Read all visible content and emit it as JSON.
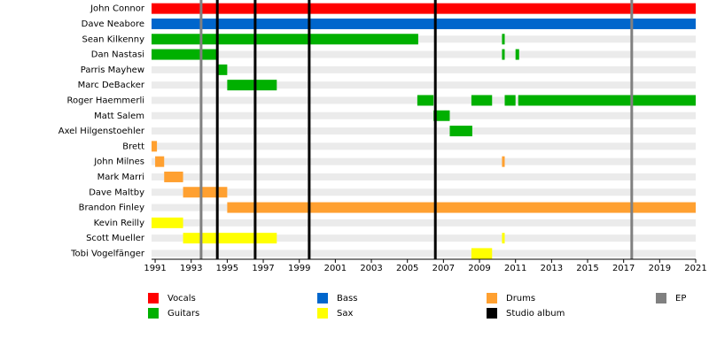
{
  "chart_data": {
    "type": "timeline",
    "categories": [
      "John Connor",
      "Dave Neabore",
      "Sean Kilkenny",
      "Dan Nastasi",
      "Parris Mayhew",
      "Marc DeBacker",
      "Roger Haemmerli",
      "Matt Salem",
      "Axel Hilgenstoehler",
      "Brett",
      "John Milnes",
      "Mark Marri",
      "Dave Maltby",
      "Brandon Finley",
      "Kevin Reilly",
      "Scott Mueller",
      "Tobi Vogelfänger"
    ],
    "series": [
      {
        "name": "Vocals",
        "color": "#ff0000"
      },
      {
        "name": "Guitars",
        "color": "#00b000"
      },
      {
        "name": "Bass",
        "color": "#0066cc"
      },
      {
        "name": "Sax",
        "color": "#ffff00"
      },
      {
        "name": "Drums",
        "color": "#ffa030"
      },
      {
        "name": "Studio album",
        "color": "#000000"
      },
      {
        "name": "EP",
        "color": "#808080"
      }
    ],
    "periods": [
      {
        "row": 0,
        "series": 0,
        "start": 1990.8,
        "end": 2021
      },
      {
        "row": 1,
        "series": 2,
        "start": 1990.8,
        "end": 2021
      },
      {
        "row": 2,
        "series": 1,
        "start": 1990.8,
        "end": 2005.6
      },
      {
        "row": 2,
        "series": 1,
        "start": 2010.25,
        "end": 2010.4
      },
      {
        "row": 3,
        "series": 1,
        "start": 1990.8,
        "end": 1994.45
      },
      {
        "row": 3,
        "series": 1,
        "start": 2010.25,
        "end": 2010.4
      },
      {
        "row": 3,
        "series": 1,
        "start": 2011.0,
        "end": 2011.2
      },
      {
        "row": 4,
        "series": 1,
        "start": 1994.45,
        "end": 1995.0
      },
      {
        "row": 5,
        "series": 1,
        "start": 1995.0,
        "end": 1997.75
      },
      {
        "row": 6,
        "series": 1,
        "start": 2005.55,
        "end": 2006.45
      },
      {
        "row": 6,
        "series": 1,
        "start": 2008.55,
        "end": 2009.7
      },
      {
        "row": 6,
        "series": 1,
        "start": 2010.4,
        "end": 2011.0
      },
      {
        "row": 6,
        "series": 1,
        "start": 2011.15,
        "end": 2021
      },
      {
        "row": 7,
        "series": 1,
        "start": 2006.45,
        "end": 2007.35
      },
      {
        "row": 8,
        "series": 1,
        "start": 2007.35,
        "end": 2008.6
      },
      {
        "row": 9,
        "series": 4,
        "start": 1990.8,
        "end": 1991.1
      },
      {
        "row": 10,
        "series": 4,
        "start": 1991.0,
        "end": 1991.5
      },
      {
        "row": 10,
        "series": 4,
        "start": 2010.25,
        "end": 2010.4
      },
      {
        "row": 11,
        "series": 4,
        "start": 1991.5,
        "end": 1992.55
      },
      {
        "row": 12,
        "series": 4,
        "start": 1992.55,
        "end": 1995.0
      },
      {
        "row": 13,
        "series": 4,
        "start": 1995.0,
        "end": 2021
      },
      {
        "row": 14,
        "series": 3,
        "start": 1990.8,
        "end": 1992.55
      },
      {
        "row": 15,
        "series": 3,
        "start": 1992.55,
        "end": 1997.75
      },
      {
        "row": 15,
        "series": 3,
        "start": 2010.25,
        "end": 2010.4
      },
      {
        "row": 16,
        "series": 3,
        "start": 2008.55,
        "end": 2009.7
      }
    ],
    "lines": [
      {
        "x": 1993.55,
        "series": 6
      },
      {
        "x": 1994.45,
        "series": 5
      },
      {
        "x": 1996.55,
        "series": 5
      },
      {
        "x": 1999.55,
        "series": 5
      },
      {
        "x": 2006.55,
        "series": 5
      },
      {
        "x": 2017.45,
        "series": 6
      }
    ],
    "xlim": [
      1990.8,
      2021
    ],
    "xticks": [
      1991,
      1993,
      1995,
      1997,
      1999,
      2001,
      2003,
      2005,
      2007,
      2009,
      2011,
      2013,
      2015,
      2017,
      2019,
      2021
    ]
  }
}
